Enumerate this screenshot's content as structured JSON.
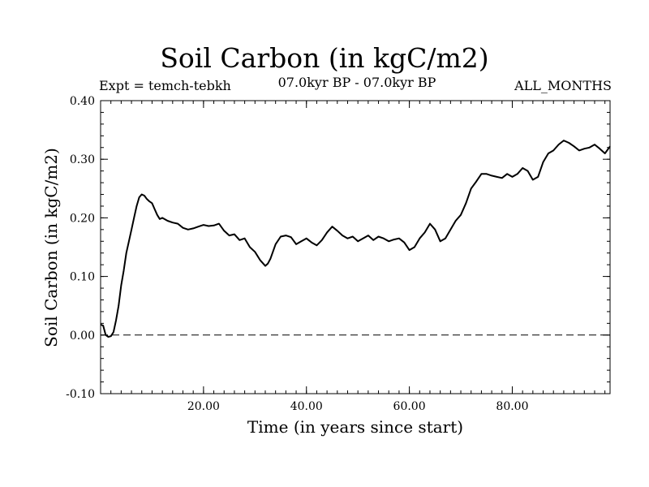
{
  "chart_data": {
    "type": "line",
    "title": "Soil Carbon (in kgC/m2)",
    "subtitle_left": "Expt = temch-tebkh",
    "subtitle_center": "07.0kyr BP - 07.0kyr BP",
    "subtitle_right": "ALL_MONTHS",
    "xlabel": "Time (in years since start)",
    "ylabel": "Soil Carbon (in kgC/m2)",
    "xlim": [
      0,
      99
    ],
    "ylim": [
      -0.1,
      0.4
    ],
    "x_ticks": [
      20,
      40,
      60,
      80
    ],
    "x_tick_labels": [
      "20.00",
      "40.00",
      "60.00",
      "80.00"
    ],
    "y_ticks": [
      -0.1,
      0.0,
      0.1,
      0.2,
      0.3,
      0.4
    ],
    "y_tick_labels": [
      "-0.10",
      "0.00",
      "0.10",
      "0.20",
      "0.30",
      "0.40"
    ],
    "zero_line": 0.0,
    "series": [
      {
        "name": "Soil Carbon",
        "color": "#000000",
        "x": [
          0,
          0.5,
          1,
          1.5,
          2,
          2.5,
          3,
          3.5,
          4,
          4.5,
          5,
          5.5,
          6,
          6.5,
          7,
          7.5,
          8,
          8.5,
          9,
          9.5,
          10,
          10.5,
          11,
          11.5,
          12,
          13,
          14,
          15,
          16,
          17,
          18,
          19,
          20,
          21,
          22,
          23,
          24,
          25,
          26,
          27,
          28,
          29,
          30,
          31,
          32,
          32.5,
          33,
          34,
          35,
          36,
          37,
          38,
          39,
          40,
          41,
          42,
          43,
          44,
          45,
          46,
          47,
          48,
          49,
          50,
          51,
          52,
          53,
          54,
          55,
          56,
          57,
          58,
          59,
          60,
          61,
          62,
          63,
          64,
          65,
          66,
          67,
          68,
          69,
          70,
          71,
          72,
          73,
          74,
          75,
          76,
          77,
          78,
          79,
          80,
          81,
          82,
          83,
          84,
          85,
          86,
          87,
          88,
          89,
          90,
          91,
          92,
          93,
          94,
          95,
          96,
          97,
          98,
          99
        ],
        "y": [
          0.018,
          0.016,
          0.0,
          -0.003,
          -0.002,
          0.005,
          0.025,
          0.05,
          0.085,
          0.11,
          0.14,
          0.16,
          0.18,
          0.2,
          0.22,
          0.235,
          0.24,
          0.238,
          0.232,
          0.228,
          0.225,
          0.215,
          0.205,
          0.198,
          0.2,
          0.195,
          0.192,
          0.19,
          0.183,
          0.18,
          0.182,
          0.185,
          0.188,
          0.186,
          0.187,
          0.19,
          0.178,
          0.17,
          0.172,
          0.162,
          0.165,
          0.15,
          0.142,
          0.128,
          0.118,
          0.122,
          0.13,
          0.155,
          0.168,
          0.17,
          0.167,
          0.155,
          0.16,
          0.165,
          0.158,
          0.153,
          0.162,
          0.175,
          0.185,
          0.178,
          0.17,
          0.165,
          0.168,
          0.16,
          0.165,
          0.17,
          0.162,
          0.168,
          0.165,
          0.16,
          0.163,
          0.165,
          0.158,
          0.145,
          0.15,
          0.165,
          0.175,
          0.19,
          0.18,
          0.16,
          0.165,
          0.18,
          0.195,
          0.205,
          0.225,
          0.25,
          0.262,
          0.275,
          0.275,
          0.272,
          0.27,
          0.268,
          0.275,
          0.27,
          0.275,
          0.285,
          0.28,
          0.265,
          0.27,
          0.295,
          0.31,
          0.315,
          0.325,
          0.332,
          0.328,
          0.322,
          0.315,
          0.318,
          0.32,
          0.325,
          0.318,
          0.31,
          0.322
        ]
      }
    ]
  }
}
